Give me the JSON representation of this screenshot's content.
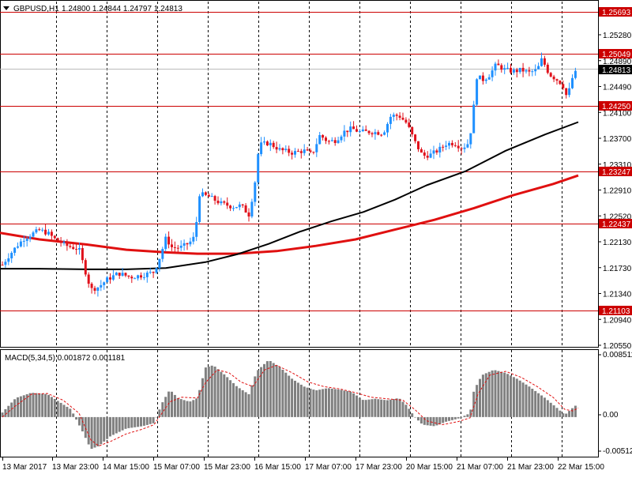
{
  "header": {
    "symbol_label": "GBPUSD,H1",
    "ohlc_text": "1.24800 1.24844 1.24797 1.24813"
  },
  "macd": {
    "label": "MACD(5,34,5) 0.001872 0.001181",
    "ticks": [
      "0.008511",
      "0.00",
      "-0.005125"
    ]
  },
  "colors": {
    "up_candle": "#1e90ff",
    "down_candle": "#e0111b",
    "level_line": "#cc0000",
    "ma_slow": "#e01010",
    "ma_fast": "#000000",
    "macd_hist": "#808080",
    "macd_signal": "#e01010",
    "grid": "#000000"
  },
  "chart_data": {
    "type": "line",
    "title": "",
    "series": [],
    "y_range": [
      1.2055,
      1.2585
    ],
    "price_ticks": [
      "1.25280",
      "1.24890",
      "1.24490",
      "1.24100",
      "1.23700",
      "1.23310",
      "1.22910",
      "1.22520",
      "1.22130",
      "1.21730",
      "1.21340",
      "1.20940",
      "1.20550"
    ],
    "levels": [
      "1.25693",
      "1.25049",
      "1.24250",
      "1.23247",
      "1.22437",
      "1.21103"
    ],
    "current_price": "1.24813",
    "x_labels": [
      "13 Mar 2017",
      "13 Mar 23:00",
      "14 Mar 15:00",
      "15 Mar 07:00",
      "15 Mar 23:00",
      "16 Mar 15:00",
      "17 Mar 07:00",
      "17 Mar 23:00",
      "20 Mar 15:00",
      "21 Mar 07:00",
      "21 Mar 23:00",
      "22 Mar 15:00"
    ],
    "ma_slow_path": [
      [
        0,
        1.223
      ],
      [
        50,
        1.222
      ],
      [
        110,
        1.2212
      ],
      [
        160,
        1.2204
      ],
      [
        210,
        1.22
      ],
      [
        250,
        1.2198
      ],
      [
        300,
        1.2198
      ],
      [
        350,
        1.2202
      ],
      [
        400,
        1.221
      ],
      [
        450,
        1.222
      ],
      [
        500,
        1.2235
      ],
      [
        550,
        1.225
      ],
      [
        600,
        1.2268
      ],
      [
        650,
        1.2288
      ],
      [
        700,
        1.2305
      ],
      [
        732,
        1.2318
      ]
    ],
    "ma_fast_path": [
      [
        0,
        1.2175
      ],
      [
        50,
        1.2175
      ],
      [
        110,
        1.2174
      ],
      [
        160,
        1.2174
      ],
      [
        210,
        1.2176
      ],
      [
        260,
        1.2185
      ],
      [
        300,
        1.2197
      ],
      [
        340,
        1.2213
      ],
      [
        380,
        1.2232
      ],
      [
        420,
        1.2248
      ],
      [
        460,
        1.2262
      ],
      [
        500,
        1.2281
      ],
      [
        540,
        1.2303
      ],
      [
        590,
        1.2325
      ],
      [
        640,
        1.2356
      ],
      [
        690,
        1.2381
      ],
      [
        732,
        1.24
      ]
    ],
    "candle_anchors": [
      [
        3,
        1.2181
      ],
      [
        10,
        1.2193
      ],
      [
        20,
        1.2208
      ],
      [
        30,
        1.2221
      ],
      [
        40,
        1.2228
      ],
      [
        50,
        1.2234
      ],
      [
        60,
        1.223
      ],
      [
        70,
        1.222
      ],
      [
        85,
        1.221
      ],
      [
        100,
        1.2205
      ],
      [
        107,
        1.2175
      ],
      [
        115,
        1.2143
      ],
      [
        125,
        1.2147
      ],
      [
        135,
        1.2158
      ],
      [
        150,
        1.2168
      ],
      [
        165,
        1.2162
      ],
      [
        180,
        1.2165
      ],
      [
        195,
        1.217
      ],
      [
        203,
        1.2195
      ],
      [
        210,
        1.2222
      ],
      [
        218,
        1.2207
      ],
      [
        230,
        1.2208
      ],
      [
        240,
        1.2215
      ],
      [
        247,
        1.2225
      ],
      [
        252,
        1.229
      ],
      [
        265,
        1.2285
      ],
      [
        280,
        1.2275
      ],
      [
        295,
        1.227
      ],
      [
        305,
        1.2272
      ],
      [
        315,
        1.2258
      ],
      [
        322,
        1.23
      ],
      [
        328,
        1.2365
      ],
      [
        340,
        1.2368
      ],
      [
        355,
        1.2357
      ],
      [
        370,
        1.2353
      ],
      [
        385,
        1.2356
      ],
      [
        395,
        1.235
      ],
      [
        405,
        1.238
      ],
      [
        415,
        1.237
      ],
      [
        425,
        1.2372
      ],
      [
        435,
        1.2385
      ],
      [
        445,
        1.239
      ],
      [
        455,
        1.2385
      ],
      [
        470,
        1.2385
      ],
      [
        485,
        1.2383
      ],
      [
        495,
        1.241
      ],
      [
        505,
        1.241
      ],
      [
        515,
        1.2398
      ],
      [
        525,
        1.237
      ],
      [
        535,
        1.2348
      ],
      [
        545,
        1.235
      ],
      [
        555,
        1.2357
      ],
      [
        565,
        1.2367
      ],
      [
        575,
        1.2368
      ],
      [
        585,
        1.236
      ],
      [
        593,
        1.2368
      ],
      [
        598,
        1.24
      ],
      [
        603,
        1.247
      ],
      [
        612,
        1.2465
      ],
      [
        620,
        1.2473
      ],
      [
        628,
        1.2488
      ],
      [
        640,
        1.248
      ],
      [
        650,
        1.2478
      ],
      [
        660,
        1.248
      ],
      [
        670,
        1.2476
      ],
      [
        680,
        1.248
      ],
      [
        686,
        1.2497
      ],
      [
        695,
        1.2474
      ],
      [
        705,
        1.2465
      ],
      [
        712,
        1.2458
      ],
      [
        718,
        1.2437
      ],
      [
        725,
        1.247
      ],
      [
        732,
        1.2481
      ]
    ],
    "macd_anchors": [
      [
        3,
        0.0006
      ],
      [
        20,
        0.0025
      ],
      [
        40,
        0.0032
      ],
      [
        60,
        0.003
      ],
      [
        75,
        0.002
      ],
      [
        90,
        0.001
      ],
      [
        105,
        -0.002
      ],
      [
        115,
        -0.0042
      ],
      [
        125,
        -0.0038
      ],
      [
        140,
        -0.0025
      ],
      [
        160,
        -0.0015
      ],
      [
        180,
        -0.0012
      ],
      [
        195,
        -0.0008
      ],
      [
        205,
        0.0018
      ],
      [
        215,
        0.0036
      ],
      [
        225,
        0.0025
      ],
      [
        240,
        0.002
      ],
      [
        250,
        0.0025
      ],
      [
        260,
        0.0065
      ],
      [
        270,
        0.0068
      ],
      [
        285,
        0.0055
      ],
      [
        300,
        0.004
      ],
      [
        315,
        0.003
      ],
      [
        325,
        0.006
      ],
      [
        340,
        0.0075
      ],
      [
        355,
        0.0065
      ],
      [
        370,
        0.005
      ],
      [
        385,
        0.004
      ],
      [
        400,
        0.0035
      ],
      [
        415,
        0.0038
      ],
      [
        430,
        0.0036
      ],
      [
        445,
        0.0033
      ],
      [
        460,
        0.0022
      ],
      [
        475,
        0.0024
      ],
      [
        490,
        0.0022
      ],
      [
        505,
        0.0025
      ],
      [
        515,
        0.0015
      ],
      [
        525,
        0.0
      ],
      [
        535,
        -0.001
      ],
      [
        550,
        -0.0012
      ],
      [
        565,
        -0.0006
      ],
      [
        580,
        -0.0002
      ],
      [
        595,
        0.0005
      ],
      [
        600,
        0.0035
      ],
      [
        610,
        0.0055
      ],
      [
        625,
        0.0062
      ],
      [
        640,
        0.0058
      ],
      [
        655,
        0.005
      ],
      [
        670,
        0.004
      ],
      [
        690,
        0.0025
      ],
      [
        705,
        0.0012
      ],
      [
        715,
        0.0003
      ],
      [
        725,
        0.0012
      ],
      [
        732,
        0.0018
      ]
    ],
    "macd_signal_anchors": [
      [
        3,
        0.0
      ],
      [
        20,
        0.0015
      ],
      [
        40,
        0.003
      ],
      [
        60,
        0.0031
      ],
      [
        80,
        0.0022
      ],
      [
        100,
        0.0005
      ],
      [
        115,
        -0.003
      ],
      [
        125,
        -0.0038
      ],
      [
        140,
        -0.0032
      ],
      [
        160,
        -0.0022
      ],
      [
        180,
        -0.0016
      ],
      [
        195,
        -0.001
      ],
      [
        205,
        0.0005
      ],
      [
        215,
        0.002
      ],
      [
        230,
        0.0026
      ],
      [
        250,
        0.0025
      ],
      [
        260,
        0.0045
      ],
      [
        275,
        0.0062
      ],
      [
        290,
        0.0058
      ],
      [
        305,
        0.0046
      ],
      [
        320,
        0.004
      ],
      [
        335,
        0.0062
      ],
      [
        350,
        0.0068
      ],
      [
        370,
        0.0058
      ],
      [
        390,
        0.0046
      ],
      [
        410,
        0.004
      ],
      [
        430,
        0.0037
      ],
      [
        450,
        0.0032
      ],
      [
        470,
        0.0026
      ],
      [
        490,
        0.0024
      ],
      [
        510,
        0.0022
      ],
      [
        525,
        0.001
      ],
      [
        540,
        -0.0005
      ],
      [
        560,
        -0.001
      ],
      [
        580,
        -0.0006
      ],
      [
        595,
        -0.0001
      ],
      [
        605,
        0.003
      ],
      [
        620,
        0.0055
      ],
      [
        640,
        0.006
      ],
      [
        660,
        0.0052
      ],
      [
        680,
        0.004
      ],
      [
        700,
        0.0026
      ],
      [
        715,
        0.001
      ],
      [
        725,
        0.0008
      ],
      [
        732,
        0.0012
      ]
    ],
    "macd_range": [
      -0.0052,
      0.0088
    ]
  }
}
